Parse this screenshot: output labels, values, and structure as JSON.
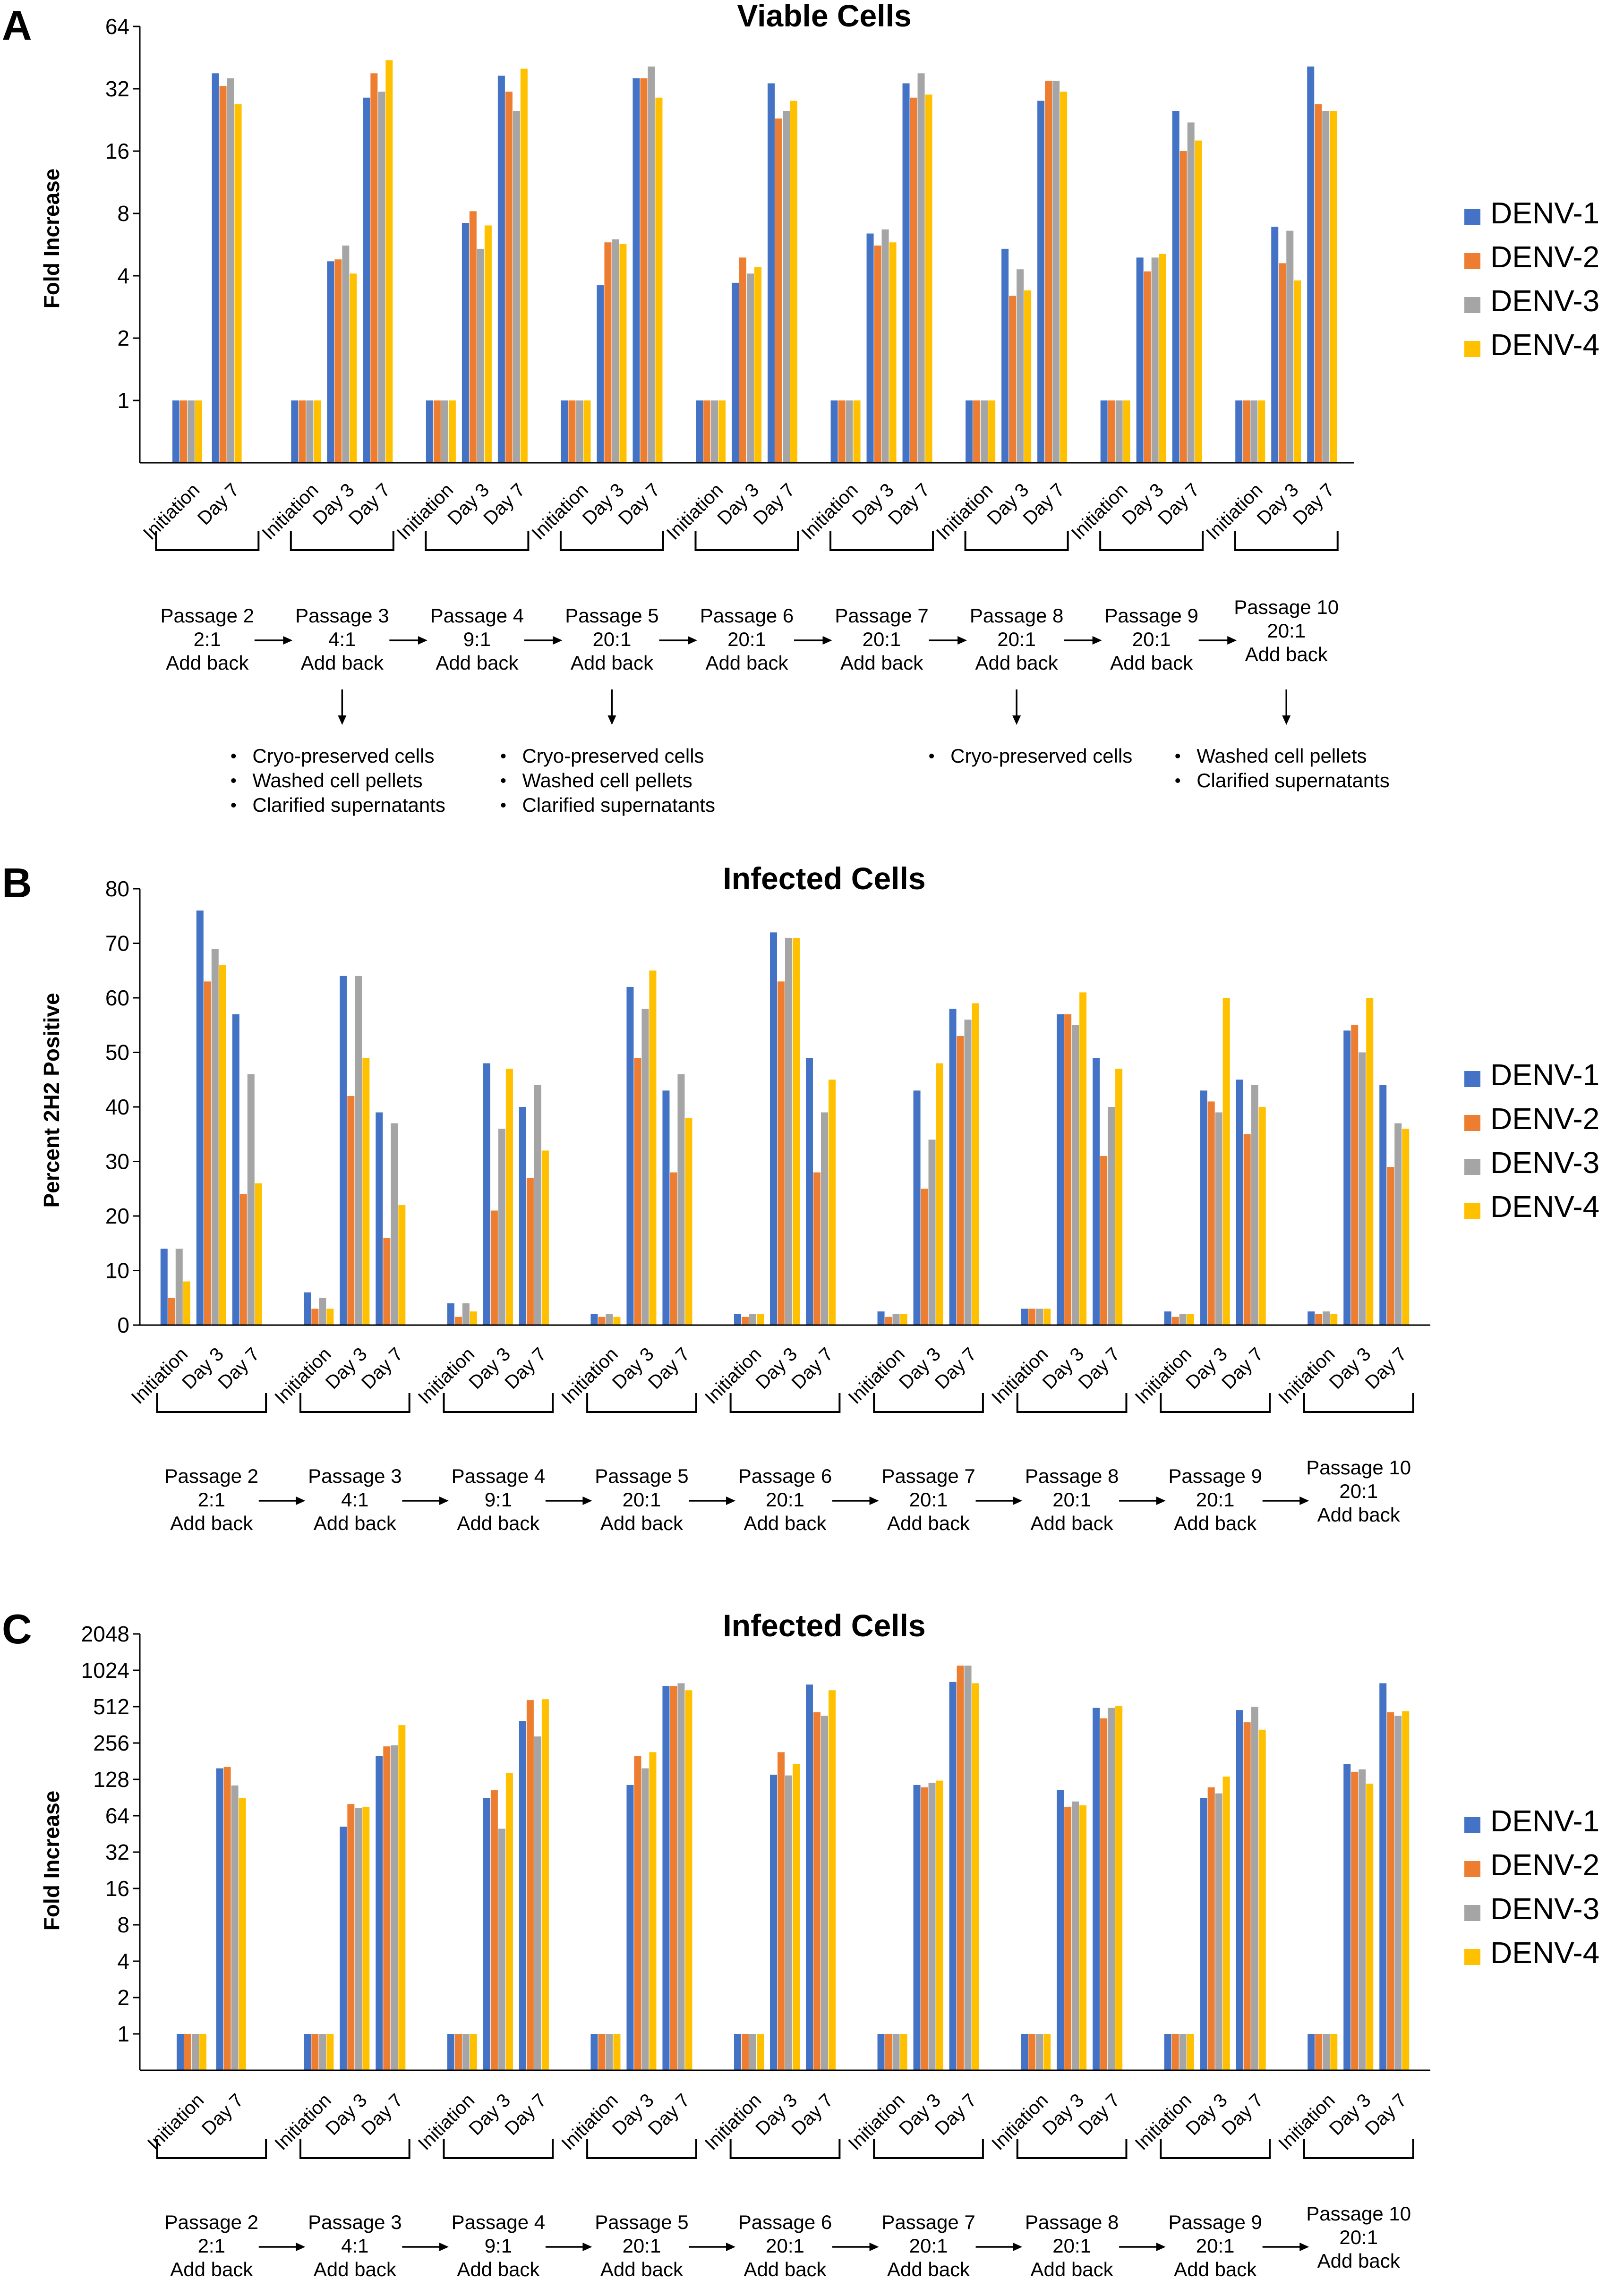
{
  "colors": {
    "DENV-1": "#4472C4",
    "DENV-2": "#ED7D31",
    "DENV-3": "#A5A5A5",
    "DENV-4": "#FFC000"
  },
  "shared": {
    "legend": [
      "DENV-1",
      "DENV-2",
      "DENV-3",
      "DENV-4"
    ],
    "passages": [
      {
        "name": "Passage 2",
        "ratio": "2:1",
        "note": "Add back"
      },
      {
        "name": "Passage 3",
        "ratio": "4:1",
        "note": "Add back"
      },
      {
        "name": "Passage 4",
        "ratio": "9:1",
        "note": "Add back"
      },
      {
        "name": "Passage 5",
        "ratio": "20:1",
        "note": "Add back"
      },
      {
        "name": "Passage 6",
        "ratio": "20:1",
        "note": "Add back"
      },
      {
        "name": "Passage 7",
        "ratio": "20:1",
        "note": "Add back"
      },
      {
        "name": "Passage 8",
        "ratio": "20:1",
        "note": "Add back"
      },
      {
        "name": "Passage 9",
        "ratio": "20:1",
        "note": "Add back"
      },
      {
        "name": "Passage 10",
        "ratio": "20:1",
        "note": "Add back"
      }
    ],
    "storage_notes": [
      {
        "passage": "Passage 3",
        "items": [
          "Cryo-preserved cells",
          "Washed cell pellets",
          "Clarified supernatants"
        ]
      },
      {
        "passage": "Passage 5",
        "items": [
          "Cryo-preserved cells",
          "Washed cell pellets",
          "Clarified supernatants"
        ]
      },
      {
        "passage": "Passage 8",
        "items": [
          "Cryo-preserved cells"
        ]
      },
      {
        "passage": "Passage 10",
        "items": [
          "Washed cell pellets",
          "Clarified supernatants"
        ]
      }
    ]
  },
  "chart_data": [
    {
      "panel": "A",
      "type": "bar",
      "title": "Viable Cells",
      "ylabel": "Fold Increase",
      "yscale": "log2",
      "ylim": [
        0.5,
        64
      ],
      "yticks": [
        "1",
        "2",
        "4",
        "8",
        "16",
        "32",
        "64"
      ],
      "groups": [
        {
          "categories": [
            "Initiation",
            "Day 7"
          ],
          "values": [
            [
              1,
              1,
              1,
              1
            ],
            [
              38,
              33,
              36,
              27
            ]
          ]
        },
        {
          "categories": [
            "Initiation",
            "Day 3",
            "Day 7"
          ],
          "values": [
            [
              1,
              1,
              1,
              1
            ],
            [
              4.7,
              4.8,
              5.6,
              4.1
            ],
            [
              29,
              38,
              31,
              44
            ]
          ]
        },
        {
          "categories": [
            "Initiation",
            "Day 3",
            "Day 7"
          ],
          "values": [
            [
              1,
              1,
              1,
              1
            ],
            [
              7.2,
              8.2,
              5.4,
              7.0
            ],
            [
              37,
              31,
              25,
              40
            ]
          ]
        },
        {
          "categories": [
            "Initiation",
            "Day 3",
            "Day 7"
          ],
          "values": [
            [
              1,
              1,
              1,
              1
            ],
            [
              3.6,
              5.8,
              6.0,
              5.7
            ],
            [
              36,
              36,
              41,
              29
            ]
          ]
        },
        {
          "categories": [
            "Initiation",
            "Day 3",
            "Day 7"
          ],
          "values": [
            [
              1,
              1,
              1,
              1
            ],
            [
              3.7,
              4.9,
              4.1,
              4.4
            ],
            [
              34,
              23,
              25,
              28
            ]
          ]
        },
        {
          "categories": [
            "Initiation",
            "Day 3",
            "Day 7"
          ],
          "values": [
            [
              1,
              1,
              1,
              1
            ],
            [
              6.4,
              5.6,
              6.7,
              5.8
            ],
            [
              34,
              29,
              38,
              30
            ]
          ]
        },
        {
          "categories": [
            "Initiation",
            "Day 3",
            "Day 7"
          ],
          "values": [
            [
              1,
              1,
              1,
              1
            ],
            [
              5.4,
              3.2,
              4.3,
              3.4
            ],
            [
              28,
              35,
              35,
              31
            ]
          ]
        },
        {
          "categories": [
            "Initiation",
            "Day 3",
            "Day 7"
          ],
          "values": [
            [
              1,
              1,
              1,
              1
            ],
            [
              4.9,
              4.2,
              4.9,
              5.1
            ],
            [
              25,
              16,
              22,
              18
            ]
          ]
        },
        {
          "categories": [
            "Initiation",
            "Day 3",
            "Day 7"
          ],
          "values": [
            [
              1,
              1,
              1,
              1
            ],
            [
              6.9,
              4.6,
              6.6,
              3.8
            ],
            [
              41,
              27,
              25,
              25
            ]
          ]
        }
      ]
    },
    {
      "panel": "B",
      "type": "bar",
      "title": "Infected Cells",
      "ylabel": "Percent 2H2 Positive",
      "yscale": "linear",
      "ylim": [
        0,
        80
      ],
      "yticks": [
        "0",
        "10",
        "20",
        "30",
        "40",
        "50",
        "60",
        "70",
        "80"
      ],
      "groups": [
        {
          "categories": [
            "Initiation",
            "Day 3",
            "Day 7"
          ],
          "values": [
            [
              14,
              5,
              14,
              8
            ],
            [
              76,
              63,
              69,
              66
            ],
            [
              57,
              24,
              46,
              26
            ]
          ]
        },
        {
          "categories": [
            "Initiation",
            "Day 3",
            "Day 7"
          ],
          "values": [
            [
              6,
              3,
              5,
              3
            ],
            [
              64,
              42,
              64,
              49
            ],
            [
              39,
              16,
              37,
              22
            ]
          ]
        },
        {
          "categories": [
            "Initiation",
            "Day 3",
            "Day 7"
          ],
          "values": [
            [
              4,
              1.5,
              4,
              2.5
            ],
            [
              48,
              21,
              36,
              47
            ],
            [
              40,
              27,
              44,
              32
            ]
          ]
        },
        {
          "categories": [
            "Initiation",
            "Day 3",
            "Day 7"
          ],
          "values": [
            [
              2,
              1.5,
              2,
              1.5
            ],
            [
              62,
              49,
              58,
              65
            ],
            [
              43,
              28,
              46,
              38
            ]
          ]
        },
        {
          "categories": [
            "Initiation",
            "Day 3",
            "Day 7"
          ],
          "values": [
            [
              2,
              1.5,
              2,
              2
            ],
            [
              72,
              63,
              71,
              71
            ],
            [
              49,
              28,
              39,
              45
            ]
          ]
        },
        {
          "categories": [
            "Initiation",
            "Day 3",
            "Day 7"
          ],
          "values": [
            [
              2.5,
              1.5,
              2,
              2
            ],
            [
              43,
              25,
              34,
              48
            ],
            [
              58,
              53,
              56,
              59
            ]
          ]
        },
        {
          "categories": [
            "Initiation",
            "Day 3",
            "Day 7"
          ],
          "values": [
            [
              3,
              3,
              3,
              3
            ],
            [
              57,
              57,
              55,
              61
            ],
            [
              49,
              31,
              40,
              47
            ]
          ]
        },
        {
          "categories": [
            "Initiation",
            "Day 3",
            "Day 7"
          ],
          "values": [
            [
              2.5,
              1.5,
              2,
              2
            ],
            [
              43,
              41,
              39,
              60
            ],
            [
              45,
              35,
              44,
              40
            ]
          ]
        },
        {
          "categories": [
            "Initiation",
            "Day 3",
            "Day 7"
          ],
          "values": [
            [
              2.5,
              2,
              2.5,
              2
            ],
            [
              54,
              55,
              50,
              60
            ],
            [
              44,
              29,
              37,
              36
            ]
          ]
        }
      ]
    },
    {
      "panel": "C",
      "type": "bar",
      "title": "Infected Cells",
      "ylabel": "Fold Increase",
      "yscale": "log2",
      "ylim": [
        0.5,
        2048
      ],
      "yticks": [
        "1",
        "2",
        "4",
        "8",
        "16",
        "32",
        "64",
        "128",
        "256",
        "512",
        "1024",
        "2048"
      ],
      "groups": [
        {
          "categories": [
            "Initiation",
            "Day 7"
          ],
          "values": [
            [
              1,
              1,
              1,
              1
            ],
            [
              158,
              162,
              114,
              90
            ]
          ]
        },
        {
          "categories": [
            "Initiation",
            "Day 3",
            "Day 7"
          ],
          "values": [
            [
              1,
              1,
              1,
              1
            ],
            [
              52,
              80,
              74,
              76
            ],
            [
              200,
              240,
              245,
              360
            ]
          ]
        },
        {
          "categories": [
            "Initiation",
            "Day 3",
            "Day 7"
          ],
          "values": [
            [
              1,
              1,
              1,
              1
            ],
            [
              90,
              104,
              50,
              145
            ],
            [
              390,
              580,
              290,
              590
            ]
          ]
        },
        {
          "categories": [
            "Initiation",
            "Day 3",
            "Day 7"
          ],
          "values": [
            [
              1,
              1,
              1,
              1
            ],
            [
              115,
              200,
              158,
              215
            ],
            [
              760,
              760,
              800,
              700
            ]
          ]
        },
        {
          "categories": [
            "Initiation",
            "Day 3",
            "Day 7"
          ],
          "values": [
            [
              1,
              1,
              1,
              1
            ],
            [
              140,
              215,
              138,
              172
            ],
            [
              780,
              460,
              430,
              700
            ]
          ]
        },
        {
          "categories": [
            "Initiation",
            "Day 3",
            "Day 7"
          ],
          "values": [
            [
              1,
              1,
              1,
              1
            ],
            [
              115,
              110,
              120,
              125
            ],
            [
              820,
              1120,
              1120,
              800
            ]
          ]
        },
        {
          "categories": [
            "Initiation",
            "Day 3",
            "Day 7"
          ],
          "values": [
            [
              1,
              1,
              1,
              1
            ],
            [
              105,
              76,
              84,
              78
            ],
            [
              500,
              410,
              500,
              520
            ]
          ]
        },
        {
          "categories": [
            "Initiation",
            "Day 3",
            "Day 7"
          ],
          "values": [
            [
              1,
              1,
              1,
              1
            ],
            [
              90,
              110,
              98,
              135
            ],
            [
              480,
              380,
              510,
              330
            ]
          ]
        },
        {
          "categories": [
            "Initiation",
            "Day 3",
            "Day 7"
          ],
          "values": [
            [
              1,
              1,
              1,
              1
            ],
            [
              172,
              148,
              155,
              118
            ],
            [
              800,
              460,
              430,
              470
            ]
          ]
        }
      ]
    }
  ]
}
